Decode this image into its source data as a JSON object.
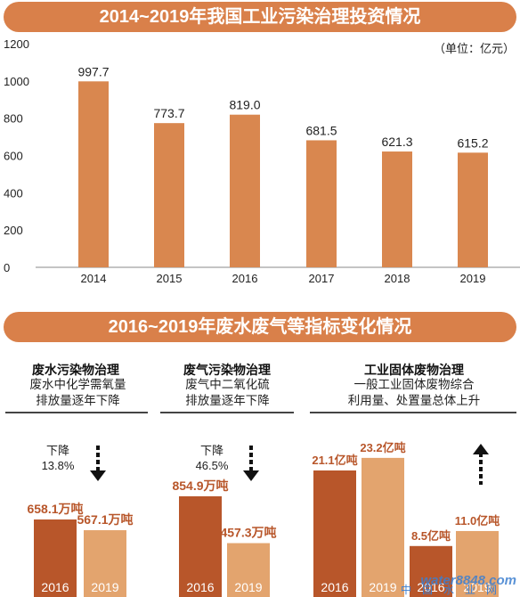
{
  "chart_data": [
    {
      "type": "bar",
      "title": "2014~2019年我国工业污染治理投资情况",
      "unit": "（单位：亿元）",
      "categories": [
        "2014",
        "2015",
        "2016",
        "2017",
        "2018",
        "2019"
      ],
      "values": [
        997.7,
        773.7,
        819.0,
        681.5,
        621.3,
        615.2
      ],
      "value_labels": [
        "997.7",
        "773.7",
        "819.0",
        "681.5",
        "621.3",
        "615.2"
      ],
      "ylim": [
        0,
        1200
      ],
      "yticks": [
        "0",
        "200",
        "400",
        "600",
        "800",
        "1000",
        "1200"
      ],
      "ytick_values": [
        0,
        200,
        400,
        600,
        800,
        1000,
        1200
      ],
      "grid": false,
      "bar_color": "#d9874f"
    },
    {
      "type": "bar",
      "title": "2016~2019年废水废气等指标变化情况",
      "panels": [
        {
          "name": "废水污染物治理",
          "description": [
            "废水中化学需氧量",
            "排放量逐年下降"
          ],
          "change_text": [
            "下降",
            "13.8%"
          ],
          "arrow": "down",
          "categories": [
            "2016",
            "2019"
          ],
          "values": [
            658.1,
            567.1
          ],
          "value_labels": [
            "658.1万吨",
            "567.1万吨"
          ]
        },
        {
          "name": "废气污染物治理",
          "description": [
            "废气中二氧化硫",
            "排放量逐年下降"
          ],
          "change_text": [
            "下降",
            "46.5%"
          ],
          "arrow": "down",
          "categories": [
            "2016",
            "2019"
          ],
          "values": [
            854.9,
            457.3
          ],
          "value_labels": [
            "854.9万吨",
            "457.3万吨"
          ]
        },
        {
          "name": "工业固体废物治理",
          "description": [
            "一般工业固体废物综合",
            "利用量、处置量总体上升"
          ],
          "change_text": [],
          "arrow": "up",
          "groups": [
            {
              "categories": [
                "2016",
                "2019"
              ],
              "values": [
                21.1,
                23.2
              ],
              "value_labels": [
                "21.1亿吨",
                "23.2亿吨"
              ]
            },
            {
              "categories": [
                "2016",
                "2019"
              ],
              "values": [
                8.5,
                11.0
              ],
              "value_labels": [
                "8.5亿吨",
                "11.0亿吨"
              ]
            }
          ]
        }
      ],
      "colors": {
        "y2016": "#b8562a",
        "y2019": "#e3a46e",
        "value_label": "#b8562a"
      }
    }
  ],
  "watermark": {
    "text": "water8848.com",
    "sub": "中国水业网"
  }
}
